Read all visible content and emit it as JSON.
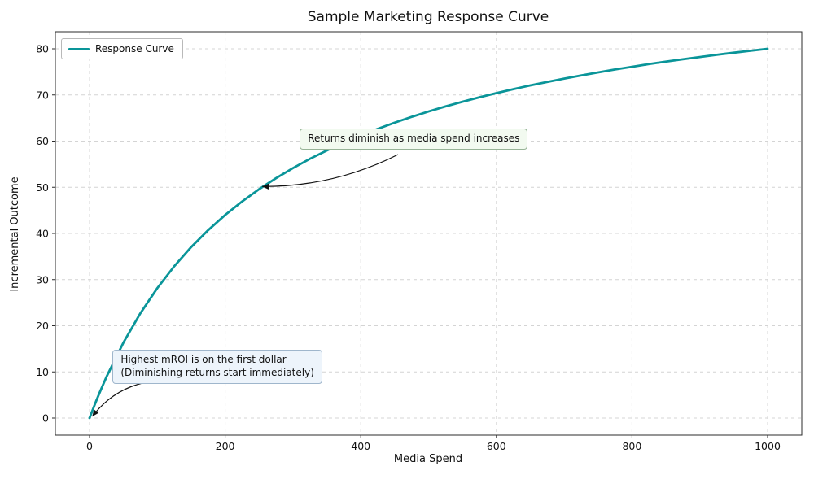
{
  "chart_data": {
    "type": "line",
    "title": "Sample Marketing Response Curve",
    "xlabel": "Media Spend",
    "ylabel": "Incremental Outcome",
    "xlim": [
      -50,
      1050
    ],
    "ylim": [
      -4,
      84
    ],
    "x_ticks": [
      0,
      200,
      400,
      600,
      800,
      1000
    ],
    "y_ticks": [
      0,
      10,
      20,
      30,
      40,
      50,
      60,
      70,
      80
    ],
    "grid": true,
    "grid_style": "dashed",
    "legend_position": "upper left",
    "series": [
      {
        "name": "Response Curve",
        "color": "#0a9599",
        "x": [
          0,
          5,
          10,
          15,
          20,
          25,
          50,
          75,
          100,
          125,
          150,
          175,
          200,
          225,
          250,
          275,
          300,
          325,
          350,
          375,
          400,
          425,
          450,
          475,
          500,
          525,
          550,
          575,
          600,
          625,
          650,
          675,
          700,
          725,
          750,
          775,
          800,
          825,
          850,
          875,
          900,
          925,
          950,
          975,
          1000
        ],
        "y": [
          0,
          1.92,
          3.76,
          5.54,
          7.26,
          8.91,
          16.37,
          22.71,
          28.16,
          32.9,
          37.05,
          40.73,
          44,
          46.93,
          49.58,
          51.97,
          54.15,
          56.15,
          57.98,
          59.66,
          61.22,
          62.66,
          64,
          65.25,
          66.41,
          67.51,
          68.53,
          69.5,
          70.4,
          71.26,
          72.07,
          72.83,
          73.55,
          74.24,
          74.89,
          75.52,
          76.11,
          76.68,
          77.22,
          77.73,
          78.22,
          78.69,
          79.15,
          79.58,
          80
        ]
      }
    ],
    "annotations": [
      {
        "lines": [
          "Returns diminish as media spend increases"
        ],
        "box_fill": "#f2faf0",
        "box_border": "#97b497",
        "arrow_target": {
          "x": 250,
          "y": 50
        },
        "text_position": {
          "x": 310,
          "y": 62.7
        }
      },
      {
        "lines": [
          "Highest mROI is on the first dollar",
          "(Diminishing returns start immediately)"
        ],
        "box_fill": "#edf4fb",
        "box_border": "#9fb6cc",
        "arrow_target": {
          "x": 0,
          "y": 0
        },
        "text_position": {
          "x": 34,
          "y": 14.8
        }
      }
    ]
  }
}
